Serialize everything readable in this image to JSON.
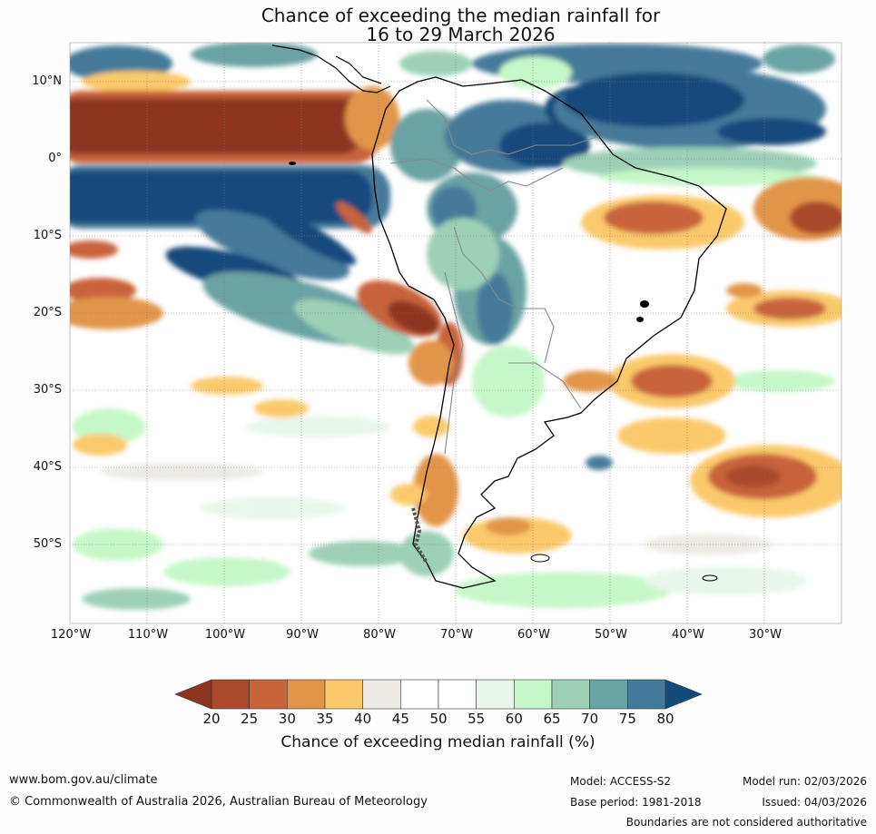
{
  "title_line1": "Chance of exceeding the median rainfall for",
  "title_line2": "16 to 29 March 2026",
  "lat_labels": [
    "10°N",
    "0°",
    "10°S",
    "20°S",
    "30°S",
    "40°S",
    "50°S"
  ],
  "lon_labels": [
    "120°W",
    "110°W",
    "100°W",
    "90°W",
    "80°W",
    "70°W",
    "60°W",
    "50°W",
    "40°W",
    "30°W"
  ],
  "map_extent": {
    "lon_min": -120,
    "lon_max": -20,
    "lat_min": -60,
    "lat_max": 15
  },
  "colorbar": {
    "title": "Chance of exceeding median rainfall (%)",
    "ticks": [
      "20",
      "25",
      "30",
      "35",
      "40",
      "45",
      "50",
      "55",
      "60",
      "65",
      "70",
      "75",
      "80"
    ],
    "under_color": "#8e3420",
    "over_color": "#134a7c",
    "bin_colors": [
      "#a84a2b",
      "#c8643a",
      "#e19548",
      "#fbc96c",
      "#eeebe6",
      "#ffffff",
      "#ffffff",
      "#e9f6ea",
      "#c6f7c8",
      "#9dd0b7",
      "#6aa3a3",
      "#447a99"
    ]
  },
  "footer": {
    "url": "www.bom.gov.au/climate",
    "copyright": "© Commonwealth of Australia 2026, Australian Bureau of Meteorology",
    "model": "Model: ACCESS-S2",
    "base_period": "Base period: 1981-2018",
    "model_run": "Model run: 02/03/2026",
    "issued": "Issued: 04/03/2026",
    "disclaimer": "Boundaries are not considered authoritative"
  }
}
